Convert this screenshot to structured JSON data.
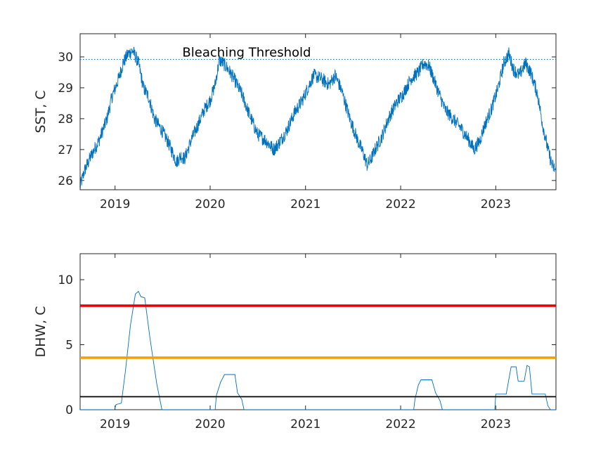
{
  "chart_data": [
    {
      "type": "line",
      "title": "",
      "xlabel": "",
      "ylabel": "SST, C",
      "xlim": [
        "2018-08-20",
        "2023-08-20"
      ],
      "ylim": [
        25.7,
        30.75
      ],
      "x_ticks": [
        "2019",
        "2020",
        "2021",
        "2022",
        "2023"
      ],
      "y_ticks": [
        26,
        27,
        28,
        29,
        30
      ],
      "grid": false,
      "series": [
        {
          "color": "#0072BD",
          "points": [
            [
              "2018-08-20",
              25.8
            ],
            [
              "2018-09-05",
              26.3
            ],
            [
              "2018-10-01",
              26.8
            ],
            [
              "2018-11-01",
              27.3
            ],
            [
              "2018-12-01",
              28.0
            ],
            [
              "2018-12-20",
              28.7
            ],
            [
              "2019-01-15",
              29.3
            ],
            [
              "2019-02-01",
              29.8
            ],
            [
              "2019-02-20",
              30.1
            ],
            [
              "2019-03-10",
              30.2
            ],
            [
              "2019-04-01",
              29.8
            ],
            [
              "2019-04-20",
              29.0
            ],
            [
              "2019-05-10",
              28.7
            ],
            [
              "2019-06-01",
              28.0
            ],
            [
              "2019-07-01",
              27.6
            ],
            [
              "2019-07-20",
              27.3
            ],
            [
              "2019-08-10",
              26.9
            ],
            [
              "2019-08-25",
              26.6
            ],
            [
              "2019-09-10",
              26.8
            ],
            [
              "2019-09-25",
              26.7
            ],
            [
              "2019-10-20",
              27.3
            ],
            [
              "2019-11-15",
              27.8
            ],
            [
              "2019-12-10",
              28.3
            ],
            [
              "2020-01-01",
              28.6
            ],
            [
              "2020-01-20",
              29.1
            ],
            [
              "2020-02-05",
              29.9
            ],
            [
              "2020-02-20",
              29.8
            ],
            [
              "2020-03-10",
              29.6
            ],
            [
              "2020-04-01",
              29.3
            ],
            [
              "2020-05-01",
              28.8
            ],
            [
              "2020-06-01",
              28.1
            ],
            [
              "2020-07-01",
              27.5
            ],
            [
              "2020-08-01",
              27.3
            ],
            [
              "2020-09-01",
              27.0
            ],
            [
              "2020-09-20",
              27.2
            ],
            [
              "2020-10-20",
              27.6
            ],
            [
              "2020-11-20",
              28.2
            ],
            [
              "2020-12-20",
              28.6
            ],
            [
              "2021-01-10",
              29.0
            ],
            [
              "2021-02-01",
              29.4
            ],
            [
              "2021-03-01",
              29.3
            ],
            [
              "2021-04-01",
              29.1
            ],
            [
              "2021-04-25",
              29.4
            ],
            [
              "2021-05-20",
              28.9
            ],
            [
              "2021-06-20",
              28.0
            ],
            [
              "2021-07-20",
              27.3
            ],
            [
              "2021-08-10",
              26.9
            ],
            [
              "2021-08-25",
              26.5
            ],
            [
              "2021-09-10",
              26.7
            ],
            [
              "2021-09-25",
              27.0
            ],
            [
              "2021-10-20",
              27.4
            ],
            [
              "2021-11-15",
              28.0
            ],
            [
              "2021-12-15",
              28.5
            ],
            [
              "2022-01-10",
              28.8
            ],
            [
              "2022-02-10",
              29.3
            ],
            [
              "2022-03-10",
              29.5
            ],
            [
              "2022-04-01",
              29.8
            ],
            [
              "2022-04-20",
              29.7
            ],
            [
              "2022-05-20",
              29.0
            ],
            [
              "2022-06-20",
              28.3
            ],
            [
              "2022-07-20",
              28.0
            ],
            [
              "2022-08-20",
              27.7
            ],
            [
              "2022-09-20",
              27.3
            ],
            [
              "2022-10-10",
              27.0
            ],
            [
              "2022-11-01",
              27.3
            ],
            [
              "2022-11-20",
              27.8
            ],
            [
              "2022-12-15",
              28.3
            ],
            [
              "2023-01-10",
              29.0
            ],
            [
              "2023-02-01",
              29.8
            ],
            [
              "2023-02-20",
              30.1
            ],
            [
              "2023-03-10",
              29.6
            ],
            [
              "2023-04-01",
              29.4
            ],
            [
              "2023-04-25",
              29.8
            ],
            [
              "2023-05-15",
              29.5
            ],
            [
              "2023-06-10",
              28.8
            ],
            [
              "2023-06-30",
              27.8
            ],
            [
              "2023-07-20",
              27.0
            ],
            [
              "2023-08-05",
              26.5
            ],
            [
              "2023-08-20",
              26.3
            ]
          ]
        }
      ],
      "reference_lines": [
        {
          "y": 29.92,
          "style": "dotted",
          "color": "#0072BD"
        }
      ],
      "annotations": [
        {
          "text": "Bleaching Threshold",
          "x": "2020-05-20",
          "y": 30.15
        }
      ]
    },
    {
      "type": "line",
      "title": "",
      "xlabel": "",
      "ylabel": "DHW, C",
      "xlim": [
        "2018-08-20",
        "2023-08-20"
      ],
      "ylim": [
        0,
        12
      ],
      "x_ticks": [
        "2019",
        "2020",
        "2021",
        "2022",
        "2023"
      ],
      "y_ticks": [
        0,
        5,
        10
      ],
      "grid": false,
      "series": [
        {
          "color": "#0072BD",
          "points": [
            [
              "2018-08-20",
              0
            ],
            [
              "2018-12-30",
              0
            ],
            [
              "2019-01-05",
              0.4
            ],
            [
              "2019-01-25",
              0.5
            ],
            [
              "2019-02-10",
              3.0
            ],
            [
              "2019-03-01",
              6.5
            ],
            [
              "2019-03-20",
              8.9
            ],
            [
              "2019-04-01",
              9.1
            ],
            [
              "2019-04-10",
              8.7
            ],
            [
              "2019-04-25",
              8.6
            ],
            [
              "2019-05-15",
              5.5
            ],
            [
              "2019-06-10",
              2.0
            ],
            [
              "2019-06-30",
              0
            ],
            [
              "2020-01-20",
              0
            ],
            [
              "2020-01-25",
              1.1
            ],
            [
              "2020-02-10",
              2.1
            ],
            [
              "2020-02-25",
              2.7
            ],
            [
              "2020-04-05",
              2.7
            ],
            [
              "2020-04-15",
              1.3
            ],
            [
              "2020-05-01",
              0.8
            ],
            [
              "2020-05-10",
              0
            ],
            [
              "2022-02-20",
              0
            ],
            [
              "2022-02-25",
              0.8
            ],
            [
              "2022-03-10",
              1.9
            ],
            [
              "2022-03-20",
              2.3
            ],
            [
              "2022-05-01",
              2.3
            ],
            [
              "2022-05-15",
              1.3
            ],
            [
              "2022-06-01",
              0.7
            ],
            [
              "2022-06-10",
              0
            ],
            [
              "2022-12-28",
              0
            ],
            [
              "2023-01-01",
              1.2
            ],
            [
              "2023-02-10",
              1.2
            ],
            [
              "2023-03-01",
              3.3
            ],
            [
              "2023-03-20",
              3.3
            ],
            [
              "2023-03-28",
              2.2
            ],
            [
              "2023-04-20",
              2.2
            ],
            [
              "2023-05-01",
              3.4
            ],
            [
              "2023-05-10",
              3.3
            ],
            [
              "2023-05-20",
              1.2
            ],
            [
              "2023-07-10",
              1.2
            ],
            [
              "2023-07-20",
              0.3
            ],
            [
              "2023-07-30",
              0
            ],
            [
              "2023-08-20",
              0
            ]
          ]
        }
      ],
      "reference_lines": [
        {
          "y": 8,
          "style": "solid",
          "color": "#E00000",
          "width": "thick"
        },
        {
          "y": 4,
          "style": "solid",
          "color": "#F0A000",
          "width": "thick"
        },
        {
          "y": 1,
          "style": "solid",
          "color": "#000000",
          "width": "normal"
        }
      ],
      "annotations": []
    }
  ]
}
